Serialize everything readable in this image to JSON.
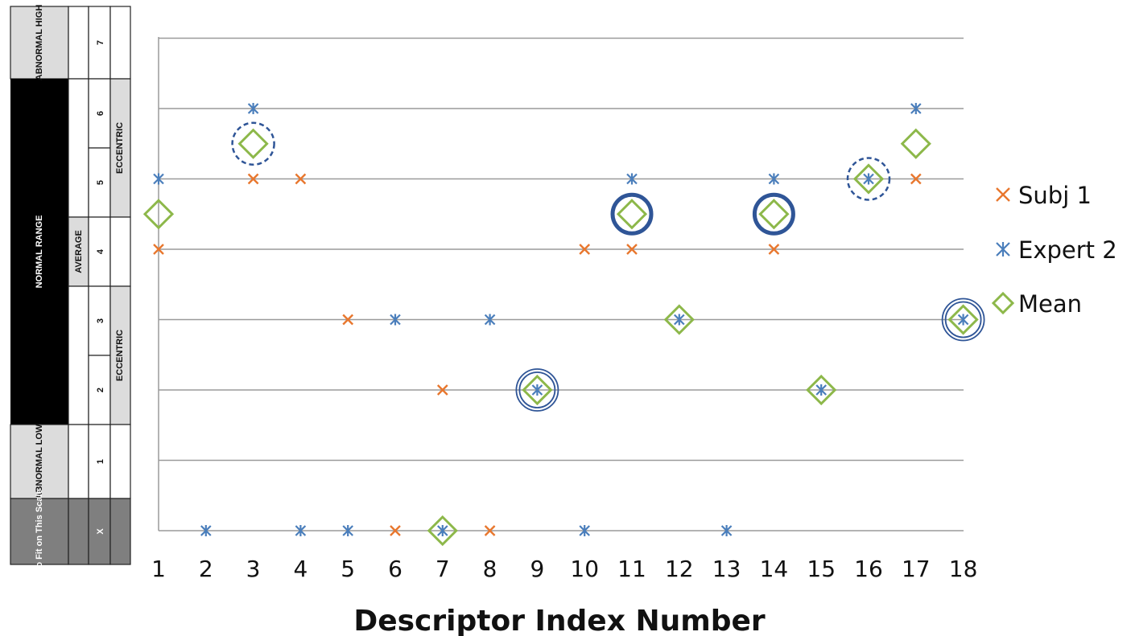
{
  "scale_table": {
    "columns": {
      "range": {
        "abnormal_high": "ABNORMAL HIGH",
        "normal_range": "NORMAL RANGE",
        "abnormal_low": "ABNORMAL LOW",
        "no_fit": "No Fit on This Scale"
      },
      "sub": {
        "average": "AVERAGE"
      },
      "values": [
        "7",
        "6",
        "5",
        "4",
        "3",
        "2",
        "1",
        "X"
      ],
      "tags": {
        "eccentric_upper": "ECCENTRIC",
        "eccentric_lower": "ECCENTRIC"
      }
    }
  },
  "chart_data": {
    "type": "scatter",
    "xlabel": "Descriptor Index Number",
    "ylabel": "",
    "x_ticks": [
      "1",
      "2",
      "3",
      "4",
      "5",
      "6",
      "7",
      "8",
      "9",
      "10",
      "11",
      "12",
      "13",
      "14",
      "15",
      "16",
      "17",
      "18"
    ],
    "ylim": [
      0,
      7
    ],
    "y_levels": [
      "X",
      "1",
      "2",
      "3",
      "4",
      "5",
      "6",
      "7"
    ],
    "grid": true,
    "legend_position": "right",
    "series": [
      {
        "name": "Subj 1",
        "marker": "x",
        "color": "#e8772e",
        "points": [
          [
            1,
            4
          ],
          [
            3,
            5
          ],
          [
            4,
            5
          ],
          [
            5,
            3
          ],
          [
            6,
            0
          ],
          [
            7,
            2
          ],
          [
            8,
            0
          ],
          [
            10,
            4
          ],
          [
            11,
            4
          ],
          [
            14,
            4
          ],
          [
            17,
            5
          ]
        ]
      },
      {
        "name": "Expert 2",
        "marker": "asterisk",
        "color": "#4a7ebb",
        "points": [
          [
            1,
            5
          ],
          [
            2,
            0
          ],
          [
            3,
            6
          ],
          [
            4,
            0
          ],
          [
            5,
            0
          ],
          [
            6,
            3
          ],
          [
            7,
            0
          ],
          [
            8,
            3
          ],
          [
            9,
            2
          ],
          [
            10,
            0
          ],
          [
            11,
            5
          ],
          [
            12,
            3
          ],
          [
            13,
            0
          ],
          [
            14,
            5
          ],
          [
            15,
            2
          ],
          [
            16,
            5
          ],
          [
            17,
            6
          ],
          [
            18,
            3
          ]
        ]
      },
      {
        "name": "Mean",
        "marker": "diamond",
        "color": "#8db84a",
        "points": [
          [
            1,
            4.5
          ],
          [
            3,
            5.5
          ],
          [
            7,
            0
          ],
          [
            9,
            2
          ],
          [
            11,
            4.5
          ],
          [
            12,
            3
          ],
          [
            14,
            4.5
          ],
          [
            15,
            2
          ],
          [
            16,
            5
          ],
          [
            17,
            5.5
          ],
          [
            18,
            3
          ]
        ]
      }
    ],
    "annotations": [
      {
        "style": "dashed-circle",
        "x": 3,
        "y": 5.5
      },
      {
        "style": "dashed-circle",
        "x": 16,
        "y": 5
      },
      {
        "style": "thick-circle",
        "x": 11,
        "y": 4.5
      },
      {
        "style": "thick-circle",
        "x": 14,
        "y": 4.5
      },
      {
        "style": "double-circle",
        "x": 9,
        "y": 2
      },
      {
        "style": "double-circle",
        "x": 18,
        "y": 3
      }
    ],
    "colors": {
      "grid": "#9a9a9a",
      "annotation": "#2f5597"
    }
  }
}
